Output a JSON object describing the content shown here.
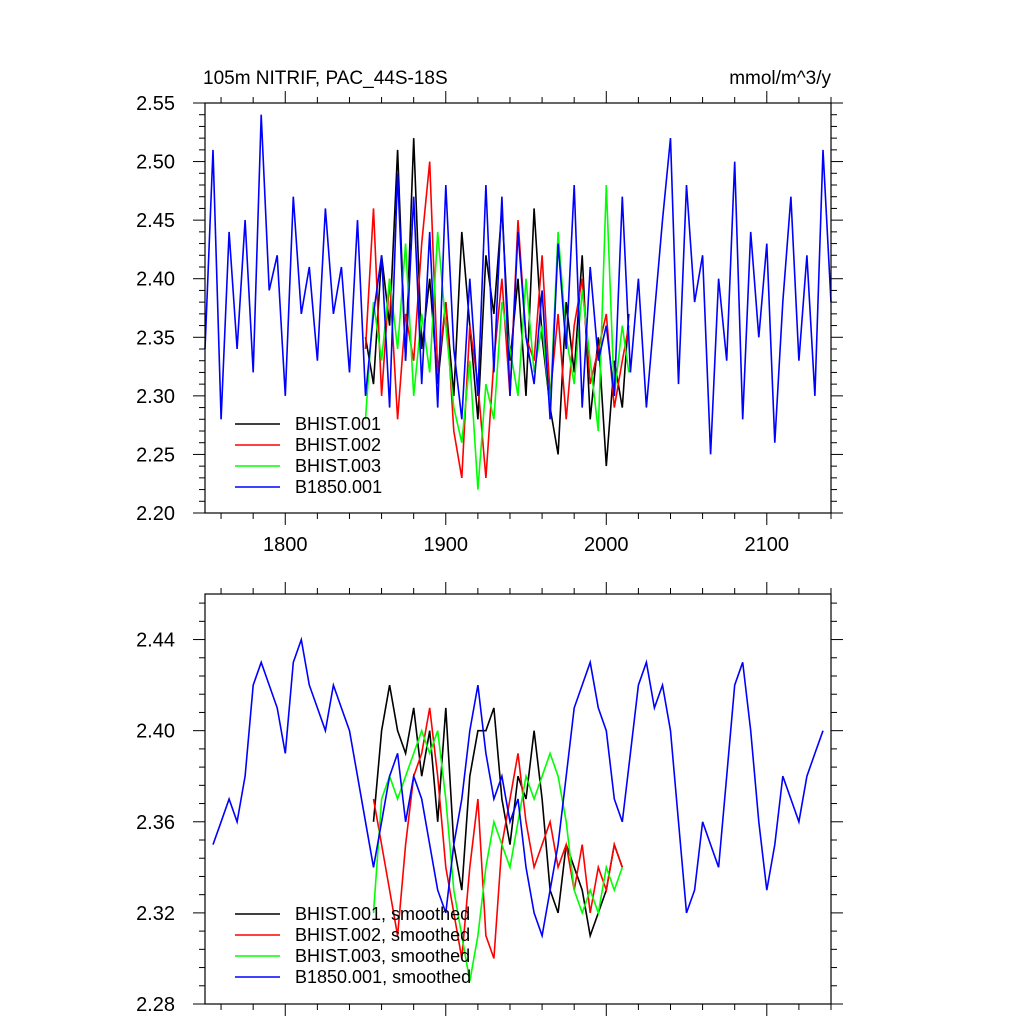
{
  "chart_data": [
    {
      "type": "line",
      "title": "105m NITRIF, PAC_44S-18S",
      "units": "mmol/m^3/y",
      "xlim": [
        1750,
        2140
      ],
      "ylim": [
        2.2,
        2.55
      ],
      "xticks": [
        1800,
        1900,
        2000,
        2100
      ],
      "yticks": [
        2.2,
        2.25,
        2.3,
        2.35,
        2.4,
        2.45,
        2.5,
        2.55
      ],
      "ytick_labels": [
        "2.20",
        "2.25",
        "2.30",
        "2.35",
        "2.40",
        "2.45",
        "2.50",
        "2.55"
      ],
      "grid": false,
      "legend_position": "bottom-left",
      "series": [
        {
          "name": "BHIST.001",
          "color": "#000000",
          "x": [
            1850,
            1855,
            1860,
            1865,
            1870,
            1875,
            1880,
            1885,
            1890,
            1895,
            1900,
            1905,
            1910,
            1915,
            1920,
            1925,
            1930,
            1935,
            1940,
            1945,
            1950,
            1955,
            1960,
            1965,
            1970,
            1975,
            1980,
            1985,
            1990,
            1995,
            2000,
            2005,
            2010,
            2014
          ],
          "y": [
            2.35,
            2.31,
            2.42,
            2.36,
            2.51,
            2.33,
            2.52,
            2.34,
            2.4,
            2.31,
            2.38,
            2.3,
            2.44,
            2.36,
            2.28,
            2.42,
            2.37,
            2.46,
            2.33,
            2.4,
            2.3,
            2.46,
            2.35,
            2.29,
            2.25,
            2.38,
            2.32,
            2.42,
            2.28,
            2.35,
            2.24,
            2.33,
            2.29,
            2.37
          ]
        },
        {
          "name": "BHIST.002",
          "color": "#ff0000",
          "x": [
            1850,
            1855,
            1860,
            1865,
            1870,
            1875,
            1880,
            1885,
            1890,
            1895,
            1900,
            1905,
            1910,
            1915,
            1920,
            1925,
            1930,
            1935,
            1940,
            1945,
            1950,
            1955,
            1960,
            1965,
            1970,
            1975,
            1980,
            1985,
            1990,
            1995,
            2000,
            2005,
            2010,
            2014
          ],
          "y": [
            2.34,
            2.46,
            2.3,
            2.4,
            2.28,
            2.37,
            2.33,
            2.43,
            2.5,
            2.32,
            2.38,
            2.27,
            2.23,
            2.36,
            2.31,
            2.23,
            2.33,
            2.4,
            2.3,
            2.45,
            2.35,
            2.33,
            2.42,
            2.3,
            2.37,
            2.28,
            2.36,
            2.4,
            2.31,
            2.34,
            2.37,
            2.29,
            2.33,
            2.36
          ]
        },
        {
          "name": "BHIST.003",
          "color": "#00ff00",
          "x": [
            1850,
            1855,
            1860,
            1865,
            1870,
            1875,
            1880,
            1885,
            1890,
            1895,
            1900,
            1905,
            1910,
            1915,
            1920,
            1925,
            1930,
            1935,
            1940,
            1945,
            1950,
            1955,
            1960,
            1965,
            1970,
            1975,
            1980,
            1985,
            1990,
            1995,
            2000,
            2005,
            2010,
            2014
          ],
          "y": [
            2.28,
            2.38,
            2.33,
            2.4,
            2.34,
            2.43,
            2.3,
            2.37,
            2.32,
            2.44,
            2.36,
            2.29,
            2.26,
            2.33,
            2.22,
            2.31,
            2.28,
            2.38,
            2.34,
            2.3,
            2.4,
            2.32,
            2.36,
            2.29,
            2.44,
            2.35,
            2.31,
            2.39,
            2.33,
            2.27,
            2.48,
            2.3,
            2.36,
            2.32
          ]
        },
        {
          "name": "B1850.001",
          "color": "#0000ff",
          "x": [
            1750,
            1755,
            1760,
            1765,
            1770,
            1775,
            1780,
            1785,
            1790,
            1795,
            1800,
            1805,
            1810,
            1815,
            1820,
            1825,
            1830,
            1835,
            1840,
            1845,
            1850,
            1855,
            1860,
            1865,
            1870,
            1875,
            1880,
            1885,
            1890,
            1895,
            1900,
            1905,
            1910,
            1915,
            1920,
            1925,
            1930,
            1935,
            1940,
            1945,
            1950,
            1955,
            1960,
            1965,
            1970,
            1975,
            1980,
            1985,
            1990,
            1995,
            2000,
            2005,
            2010,
            2015,
            2020,
            2025,
            2030,
            2035,
            2040,
            2045,
            2050,
            2055,
            2060,
            2065,
            2070,
            2075,
            2080,
            2085,
            2090,
            2095,
            2100,
            2105,
            2110,
            2115,
            2120,
            2125,
            2130,
            2135,
            2140
          ],
          "y": [
            2.34,
            2.51,
            2.28,
            2.44,
            2.34,
            2.45,
            2.32,
            2.54,
            2.39,
            2.42,
            2.3,
            2.47,
            2.37,
            2.41,
            2.33,
            2.46,
            2.37,
            2.41,
            2.32,
            2.45,
            2.3,
            2.37,
            2.42,
            2.29,
            2.49,
            2.33,
            2.47,
            2.31,
            2.44,
            2.29,
            2.48,
            2.34,
            2.28,
            2.4,
            2.3,
            2.48,
            2.32,
            2.47,
            2.3,
            2.44,
            2.35,
            2.31,
            2.39,
            2.28,
            2.43,
            2.34,
            2.48,
            2.29,
            2.41,
            2.33,
            2.36,
            2.3,
            2.47,
            2.32,
            2.4,
            2.29,
            2.37,
            2.45,
            2.52,
            2.31,
            2.48,
            2.38,
            2.42,
            2.25,
            2.4,
            2.33,
            2.5,
            2.28,
            2.44,
            2.35,
            2.43,
            2.26,
            2.38,
            2.47,
            2.33,
            2.42,
            2.3,
            2.51,
            2.38
          ]
        }
      ],
      "legend": [
        "BHIST.001",
        "BHIST.002",
        "BHIST.003",
        "B1850.001"
      ]
    },
    {
      "type": "line",
      "xlim": [
        1750,
        2140
      ],
      "ylim": [
        2.28,
        2.46
      ],
      "xticks": [
        1800,
        1900,
        2000,
        2100
      ],
      "yticks": [
        2.28,
        2.32,
        2.36,
        2.4,
        2.44
      ],
      "ytick_labels": [
        "2.28",
        "2.32",
        "2.36",
        "2.40",
        "2.44"
      ],
      "grid": false,
      "legend_position": "bottom-left",
      "series": [
        {
          "name": "BHIST.001, smoothed",
          "color": "#000000",
          "x": [
            1855,
            1860,
            1865,
            1870,
            1875,
            1880,
            1885,
            1890,
            1895,
            1900,
            1905,
            1910,
            1915,
            1920,
            1925,
            1930,
            1935,
            1940,
            1945,
            1950,
            1955,
            1960,
            1965,
            1970,
            1975,
            1980,
            1985,
            1990,
            1995,
            2000,
            2005,
            2010
          ],
          "y": [
            2.36,
            2.4,
            2.42,
            2.4,
            2.39,
            2.41,
            2.38,
            2.4,
            2.36,
            2.41,
            2.35,
            2.33,
            2.38,
            2.4,
            2.4,
            2.41,
            2.37,
            2.35,
            2.38,
            2.37,
            2.4,
            2.37,
            2.33,
            2.32,
            2.35,
            2.34,
            2.33,
            2.31,
            2.32,
            2.33,
            2.35,
            2.34
          ]
        },
        {
          "name": "BHIST.002, smoothed",
          "color": "#ff0000",
          "x": [
            1855,
            1860,
            1865,
            1870,
            1875,
            1880,
            1885,
            1890,
            1895,
            1900,
            1905,
            1910,
            1915,
            1920,
            1925,
            1930,
            1935,
            1940,
            1945,
            1950,
            1955,
            1960,
            1965,
            1970,
            1975,
            1980,
            1985,
            1990,
            1995,
            2000,
            2005,
            2010
          ],
          "y": [
            2.37,
            2.35,
            2.33,
            2.31,
            2.35,
            2.38,
            2.39,
            2.41,
            2.38,
            2.34,
            2.32,
            2.3,
            2.34,
            2.37,
            2.31,
            2.3,
            2.35,
            2.37,
            2.39,
            2.36,
            2.34,
            2.35,
            2.36,
            2.34,
            2.35,
            2.33,
            2.35,
            2.32,
            2.34,
            2.33,
            2.35,
            2.34
          ]
        },
        {
          "name": "BHIST.003, smoothed",
          "color": "#00ff00",
          "x": [
            1855,
            1860,
            1865,
            1870,
            1875,
            1880,
            1885,
            1890,
            1895,
            1900,
            1905,
            1910,
            1915,
            1920,
            1925,
            1930,
            1935,
            1940,
            1945,
            1950,
            1955,
            1960,
            1965,
            1970,
            1975,
            1980,
            1985,
            1990,
            1995,
            2000,
            2005,
            2010
          ],
          "y": [
            2.32,
            2.37,
            2.38,
            2.37,
            2.38,
            2.39,
            2.4,
            2.39,
            2.4,
            2.37,
            2.33,
            2.31,
            2.29,
            2.31,
            2.34,
            2.36,
            2.35,
            2.34,
            2.36,
            2.38,
            2.37,
            2.38,
            2.39,
            2.38,
            2.36,
            2.33,
            2.32,
            2.33,
            2.32,
            2.34,
            2.33,
            2.34
          ]
        },
        {
          "name": "B1850.001, smoothed",
          "color": "#0000ff",
          "x": [
            1755,
            1760,
            1765,
            1770,
            1775,
            1780,
            1785,
            1790,
            1795,
            1800,
            1805,
            1810,
            1815,
            1820,
            1825,
            1830,
            1835,
            1840,
            1845,
            1850,
            1855,
            1860,
            1865,
            1870,
            1875,
            1880,
            1885,
            1890,
            1895,
            1900,
            1905,
            1910,
            1915,
            1920,
            1925,
            1930,
            1935,
            1940,
            1945,
            1950,
            1955,
            1960,
            1965,
            1970,
            1975,
            1980,
            1985,
            1990,
            1995,
            2000,
            2005,
            2010,
            2015,
            2020,
            2025,
            2030,
            2035,
            2040,
            2045,
            2050,
            2055,
            2060,
            2065,
            2070,
            2075,
            2080,
            2085,
            2090,
            2095,
            2100,
            2105,
            2110,
            2115,
            2120,
            2125,
            2130,
            2135
          ],
          "y": [
            2.35,
            2.36,
            2.37,
            2.36,
            2.38,
            2.42,
            2.43,
            2.42,
            2.41,
            2.39,
            2.43,
            2.44,
            2.42,
            2.41,
            2.4,
            2.42,
            2.41,
            2.4,
            2.38,
            2.36,
            2.34,
            2.36,
            2.38,
            2.39,
            2.36,
            2.38,
            2.37,
            2.35,
            2.33,
            2.32,
            2.35,
            2.37,
            2.4,
            2.42,
            2.39,
            2.37,
            2.38,
            2.36,
            2.37,
            2.34,
            2.32,
            2.31,
            2.33,
            2.35,
            2.38,
            2.41,
            2.42,
            2.43,
            2.41,
            2.4,
            2.37,
            2.36,
            2.39,
            2.42,
            2.43,
            2.41,
            2.42,
            2.4,
            2.36,
            2.32,
            2.33,
            2.36,
            2.35,
            2.34,
            2.38,
            2.42,
            2.43,
            2.4,
            2.36,
            2.33,
            2.35,
            2.38,
            2.37,
            2.36,
            2.38,
            2.39,
            2.4
          ]
        }
      ],
      "legend": [
        "BHIST.001, smoothed",
        "BHIST.002, smoothed",
        "BHIST.003, smoothed",
        "B1850.001, smoothed"
      ]
    }
  ]
}
